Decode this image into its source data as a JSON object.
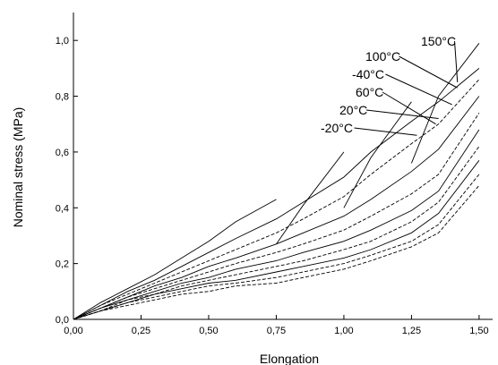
{
  "chart_data": {
    "type": "line",
    "title": "",
    "xlabel": "Elongation",
    "ylabel": "Nominal stress (MPa)",
    "xlim": [
      0,
      1.55
    ],
    "ylim": [
      0,
      1.1
    ],
    "x_ticks": [
      0,
      0.25,
      0.5,
      0.75,
      1.0,
      1.25,
      1.5
    ],
    "x_tick_labels": [
      "0,00",
      "0,25",
      "0,50",
      "0,75",
      "1,00",
      "1,25",
      "1,50"
    ],
    "y_ticks": [
      0,
      0.2,
      0.4,
      0.6,
      0.8,
      1.0
    ],
    "y_tick_labels": [
      "0,0",
      "0,2",
      "0,4",
      "0,6",
      "0,8",
      "1,0"
    ],
    "grid": false,
    "legend": "none",
    "line_color": "#000000",
    "annotations": [
      {
        "text": "150°C",
        "target_x": 1.42,
        "target_y": 0.85
      },
      {
        "text": "100°C",
        "target_x": 1.42,
        "target_y": 0.83
      },
      {
        "text": "-40°C",
        "target_x": 1.4,
        "target_y": 0.77
      },
      {
        "text": "60°C",
        "target_x": 1.34,
        "target_y": 0.7
      },
      {
        "text": "20°C",
        "target_x": 1.35,
        "target_y": 0.72
      },
      {
        "text": "-20°C",
        "target_x": 1.27,
        "target_y": 0.66
      }
    ],
    "series": [
      {
        "style": "solid",
        "segments": [
          {
            "x": [
              0,
              0.05,
              0.1,
              0.2,
              0.3,
              0.4,
              0.5,
              0.6,
              0.75
            ],
            "y": [
              0,
              0.03,
              0.06,
              0.11,
              0.16,
              0.22,
              0.28,
              0.35,
              0.43
            ]
          },
          {
            "x": [
              0.75,
              0.85,
              1.0
            ],
            "y": [
              0.27,
              0.41,
              0.6
            ]
          },
          {
            "x": [
              1.0,
              1.1,
              1.25
            ],
            "y": [
              0.4,
              0.58,
              0.78
            ]
          },
          {
            "x": [
              1.25,
              1.35,
              1.5
            ],
            "y": [
              0.56,
              0.8,
              0.99
            ]
          }
        ]
      },
      {
        "style": "solid",
        "segments": [
          {
            "x": [
              0,
              0.1,
              0.2,
              0.3,
              0.4,
              0.5,
              0.6,
              0.75,
              0.85,
              1.0,
              1.1,
              1.25,
              1.35,
              1.5
            ],
            "y": [
              0,
              0.05,
              0.1,
              0.14,
              0.19,
              0.24,
              0.29,
              0.36,
              0.42,
              0.51,
              0.6,
              0.71,
              0.78,
              0.9
            ]
          }
        ]
      },
      {
        "style": "dashed",
        "segments": [
          {
            "x": [
              0,
              0.1,
              0.2,
              0.3,
              0.4,
              0.5,
              0.6,
              0.75,
              0.85,
              1.0,
              1.1,
              1.25,
              1.35,
              1.5
            ],
            "y": [
              0,
              0.05,
              0.09,
              0.13,
              0.17,
              0.21,
              0.25,
              0.31,
              0.36,
              0.44,
              0.52,
              0.63,
              0.7,
              0.86
            ]
          }
        ]
      },
      {
        "style": "solid",
        "segments": [
          {
            "x": [
              0,
              0.1,
              0.2,
              0.3,
              0.4,
              0.5,
              0.6,
              0.75,
              0.85,
              1.0,
              1.1,
              1.25,
              1.35,
              1.5
            ],
            "y": [
              0,
              0.04,
              0.08,
              0.12,
              0.15,
              0.19,
              0.22,
              0.27,
              0.31,
              0.37,
              0.43,
              0.53,
              0.61,
              0.8
            ]
          }
        ]
      },
      {
        "style": "dashed",
        "segments": [
          {
            "x": [
              0,
              0.1,
              0.2,
              0.3,
              0.4,
              0.5,
              0.6,
              0.75,
              0.85,
              1.0,
              1.1,
              1.25,
              1.35,
              1.5
            ],
            "y": [
              0,
              0.04,
              0.08,
              0.11,
              0.14,
              0.17,
              0.2,
              0.24,
              0.27,
              0.32,
              0.37,
              0.45,
              0.52,
              0.74
            ]
          }
        ]
      },
      {
        "style": "solid",
        "segments": [
          {
            "x": [
              0,
              0.1,
              0.2,
              0.3,
              0.4,
              0.5,
              0.6,
              0.75,
              0.85,
              1.0,
              1.1,
              1.25,
              1.35,
              1.5
            ],
            "y": [
              0,
              0.04,
              0.07,
              0.1,
              0.13,
              0.15,
              0.18,
              0.21,
              0.24,
              0.28,
              0.32,
              0.39,
              0.46,
              0.68
            ]
          }
        ]
      },
      {
        "style": "dashed",
        "segments": [
          {
            "x": [
              0,
              0.1,
              0.2,
              0.3,
              0.4,
              0.5,
              0.6,
              0.75,
              0.85,
              1.0,
              1.1,
              1.25,
              1.35,
              1.5
            ],
            "y": [
              0,
              0.03,
              0.07,
              0.09,
              0.12,
              0.14,
              0.16,
              0.19,
              0.21,
              0.25,
              0.28,
              0.35,
              0.42,
              0.62
            ]
          }
        ]
      },
      {
        "style": "solid",
        "segments": [
          {
            "x": [
              0,
              0.1,
              0.2,
              0.3,
              0.4,
              0.5,
              0.6,
              0.75,
              0.85,
              1.0,
              1.1,
              1.25,
              1.35,
              1.5
            ],
            "y": [
              0,
              0.03,
              0.06,
              0.09,
              0.11,
              0.13,
              0.14,
              0.17,
              0.19,
              0.22,
              0.25,
              0.31,
              0.38,
              0.57
            ]
          }
        ]
      },
      {
        "style": "dashed",
        "segments": [
          {
            "x": [
              0,
              0.1,
              0.2,
              0.3,
              0.4,
              0.5,
              0.6,
              0.75,
              0.85,
              1.0,
              1.1,
              1.25,
              1.35,
              1.5
            ],
            "y": [
              0,
              0.03,
              0.06,
              0.08,
              0.1,
              0.12,
              0.13,
              0.15,
              0.17,
              0.2,
              0.23,
              0.28,
              0.34,
              0.52
            ]
          }
        ]
      },
      {
        "style": "dashed",
        "segments": [
          {
            "x": [
              0,
              0.1,
              0.2,
              0.3,
              0.4,
              0.5,
              0.6,
              0.75,
              0.85,
              1.0,
              1.1,
              1.25,
              1.35,
              1.5
            ],
            "y": [
              0,
              0.03,
              0.05,
              0.07,
              0.09,
              0.1,
              0.12,
              0.13,
              0.15,
              0.18,
              0.21,
              0.26,
              0.31,
              0.48
            ]
          }
        ]
      }
    ]
  }
}
